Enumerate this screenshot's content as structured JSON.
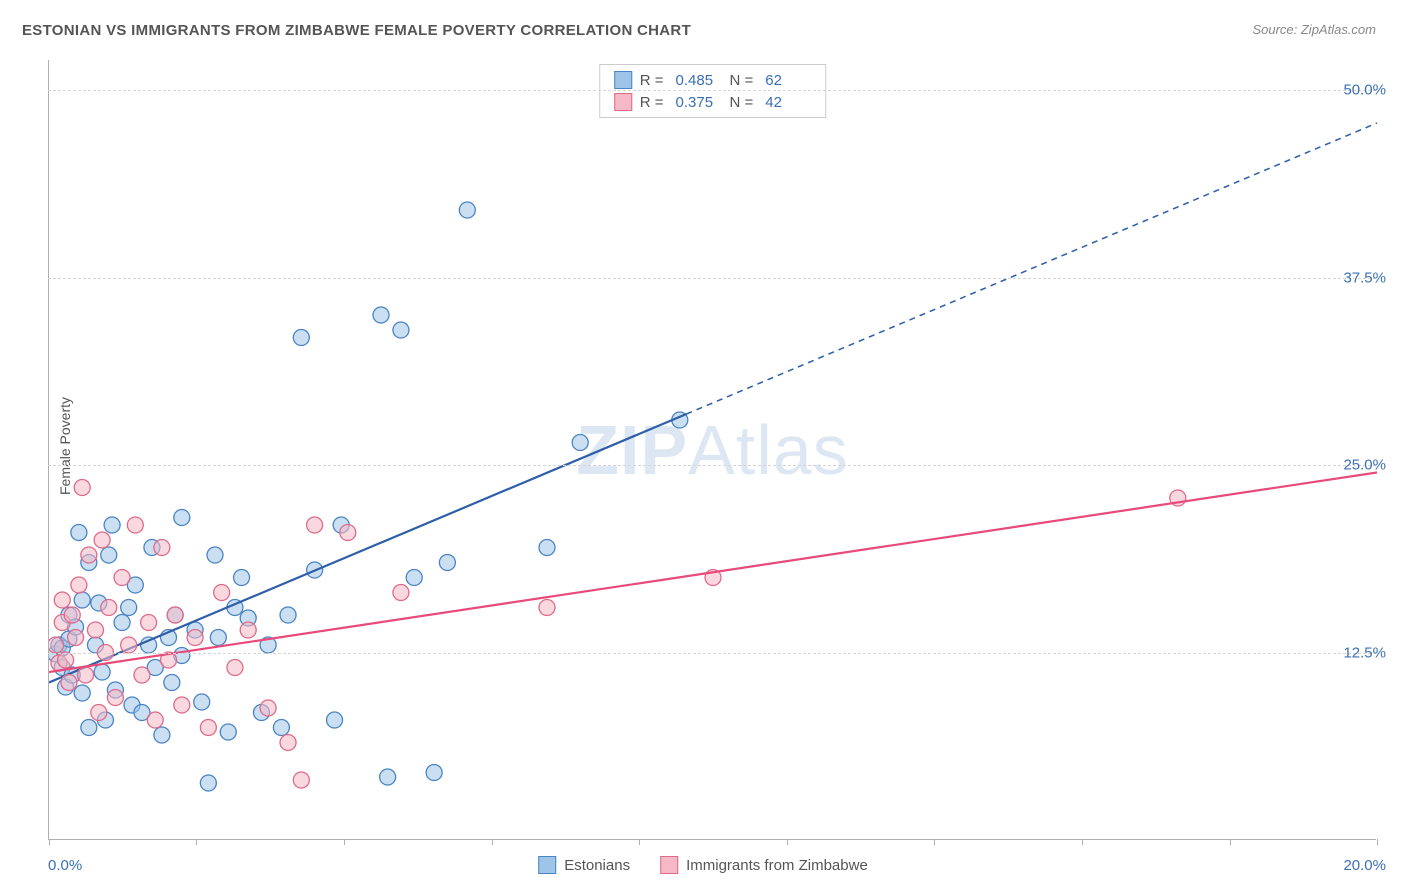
{
  "title": "ESTONIAN VS IMMIGRANTS FROM ZIMBABWE FEMALE POVERTY CORRELATION CHART",
  "source_label": "Source: ",
  "source_value": "ZipAtlas.com",
  "y_axis_label": "Female Poverty",
  "watermark_bold": "ZIP",
  "watermark_rest": "Atlas",
  "chart": {
    "type": "scatter",
    "xlim": [
      0,
      20
    ],
    "ylim": [
      0,
      52
    ],
    "x_ticks": [
      0,
      2.22,
      4.44,
      6.67,
      8.89,
      11.11,
      13.33,
      15.56,
      17.78,
      20
    ],
    "x_tick_labels_shown": {
      "0": "0.0%",
      "20": "20.0%"
    },
    "y_grid": [
      12.5,
      25.0,
      37.5,
      50.0
    ],
    "y_tick_labels": [
      "12.5%",
      "25.0%",
      "37.5%",
      "50.0%"
    ],
    "background_color": "#ffffff",
    "grid_color": "#d5d5d5",
    "axis_color": "#b0b0b0",
    "label_color": "#3b6fb5",
    "marker_radius": 8,
    "marker_stroke_width": 1.3,
    "series": [
      {
        "name": "Estonians",
        "fill": "#9ec5e8",
        "stroke": "#4a84c4",
        "fill_opacity": 0.55,
        "R": "0.485",
        "N": "62",
        "trend": {
          "x1": 0,
          "y1": 10.5,
          "x2": 9.6,
          "y2": 28.4,
          "dash_to_x": 20,
          "dash_to_y": 47.8,
          "color": "#2f5fa8",
          "width": 2.2
        },
        "points": [
          [
            0.1,
            12.4
          ],
          [
            0.15,
            13.0
          ],
          [
            0.2,
            11.5
          ],
          [
            0.2,
            12.8
          ],
          [
            0.25,
            10.2
          ],
          [
            0.3,
            13.4
          ],
          [
            0.3,
            15.0
          ],
          [
            0.35,
            11.0
          ],
          [
            0.4,
            14.2
          ],
          [
            0.45,
            20.5
          ],
          [
            0.5,
            16.0
          ],
          [
            0.5,
            9.8
          ],
          [
            0.6,
            18.5
          ],
          [
            0.6,
            7.5
          ],
          [
            0.7,
            13.0
          ],
          [
            0.75,
            15.8
          ],
          [
            0.8,
            11.2
          ],
          [
            0.85,
            8.0
          ],
          [
            0.9,
            19.0
          ],
          [
            0.95,
            21.0
          ],
          [
            1.0,
            10.0
          ],
          [
            1.1,
            14.5
          ],
          [
            1.2,
            15.5
          ],
          [
            1.25,
            9.0
          ],
          [
            1.3,
            17.0
          ],
          [
            1.4,
            8.5
          ],
          [
            1.5,
            13.0
          ],
          [
            1.55,
            19.5
          ],
          [
            1.6,
            11.5
          ],
          [
            1.7,
            7.0
          ],
          [
            1.8,
            13.5
          ],
          [
            1.85,
            10.5
          ],
          [
            1.9,
            15.0
          ],
          [
            2.0,
            12.3
          ],
          [
            2.0,
            21.5
          ],
          [
            2.2,
            14.0
          ],
          [
            2.3,
            9.2
          ],
          [
            2.4,
            3.8
          ],
          [
            2.5,
            19.0
          ],
          [
            2.55,
            13.5
          ],
          [
            2.7,
            7.2
          ],
          [
            2.8,
            15.5
          ],
          [
            2.9,
            17.5
          ],
          [
            3.0,
            14.8
          ],
          [
            3.2,
            8.5
          ],
          [
            3.3,
            13.0
          ],
          [
            3.5,
            7.5
          ],
          [
            3.6,
            15.0
          ],
          [
            3.8,
            33.5
          ],
          [
            4.0,
            18.0
          ],
          [
            4.3,
            8.0
          ],
          [
            4.4,
            21.0
          ],
          [
            5.0,
            35.0
          ],
          [
            5.1,
            4.2
          ],
          [
            5.3,
            34.0
          ],
          [
            5.5,
            17.5
          ],
          [
            5.8,
            4.5
          ],
          [
            6.0,
            18.5
          ],
          [
            6.3,
            42.0
          ],
          [
            7.5,
            19.5
          ],
          [
            8.0,
            26.5
          ],
          [
            9.5,
            28.0
          ]
        ]
      },
      {
        "name": "Immigrants from Zimbabwe",
        "fill": "#f4b8c6",
        "stroke": "#e06a8a",
        "fill_opacity": 0.55,
        "R": "0.375",
        "N": "42",
        "trend": {
          "x1": 0,
          "y1": 11.2,
          "x2": 20,
          "y2": 24.5,
          "color": "#e84a7a",
          "width": 2.2
        },
        "points": [
          [
            0.1,
            13.0
          ],
          [
            0.15,
            11.8
          ],
          [
            0.2,
            14.5
          ],
          [
            0.2,
            16.0
          ],
          [
            0.25,
            12.0
          ],
          [
            0.3,
            10.5
          ],
          [
            0.35,
            15.0
          ],
          [
            0.4,
            13.5
          ],
          [
            0.45,
            17.0
          ],
          [
            0.5,
            23.5
          ],
          [
            0.55,
            11.0
          ],
          [
            0.6,
            19.0
          ],
          [
            0.7,
            14.0
          ],
          [
            0.75,
            8.5
          ],
          [
            0.8,
            20.0
          ],
          [
            0.85,
            12.5
          ],
          [
            0.9,
            15.5
          ],
          [
            1.0,
            9.5
          ],
          [
            1.1,
            17.5
          ],
          [
            1.2,
            13.0
          ],
          [
            1.3,
            21.0
          ],
          [
            1.4,
            11.0
          ],
          [
            1.5,
            14.5
          ],
          [
            1.6,
            8.0
          ],
          [
            1.7,
            19.5
          ],
          [
            1.8,
            12.0
          ],
          [
            1.9,
            15.0
          ],
          [
            2.0,
            9.0
          ],
          [
            2.2,
            13.5
          ],
          [
            2.4,
            7.5
          ],
          [
            2.6,
            16.5
          ],
          [
            2.8,
            11.5
          ],
          [
            3.0,
            14.0
          ],
          [
            3.3,
            8.8
          ],
          [
            3.6,
            6.5
          ],
          [
            3.8,
            4.0
          ],
          [
            4.0,
            21.0
          ],
          [
            4.5,
            20.5
          ],
          [
            5.3,
            16.5
          ],
          [
            7.5,
            15.5
          ],
          [
            10.0,
            17.5
          ],
          [
            17.0,
            22.8
          ]
        ]
      }
    ]
  },
  "legend_top_labels": {
    "R": "R =",
    "N": "N ="
  },
  "legend_bottom": [
    {
      "swatch_fill": "#9ec5e8",
      "swatch_stroke": "#4a84c4",
      "label": "Estonians"
    },
    {
      "swatch_fill": "#f4b8c6",
      "swatch_stroke": "#e06a8a",
      "label": "Immigrants from Zimbabwe"
    }
  ]
}
